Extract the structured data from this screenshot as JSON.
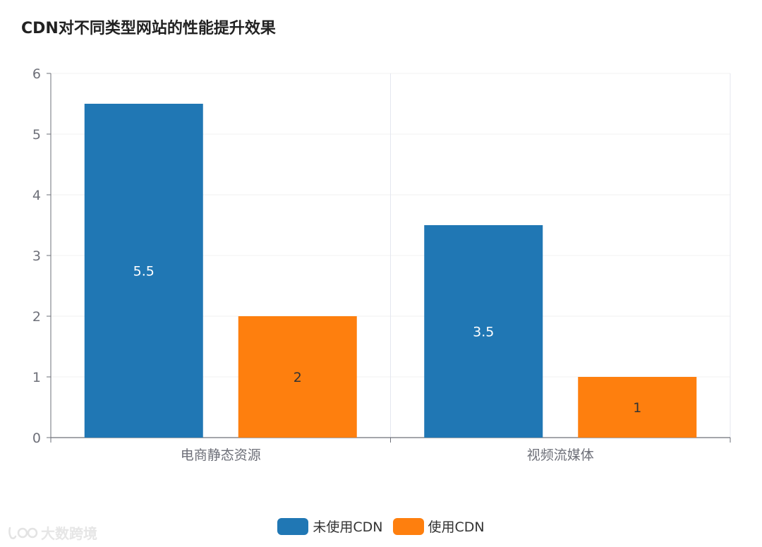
{
  "chart_data": {
    "type": "bar",
    "title": "CDN对不同类型网站的性能提升效果",
    "categories": [
      "电商静态资源",
      "视频流媒体"
    ],
    "series": [
      {
        "name": "未使用CDN",
        "values": [
          5.5,
          3.5
        ],
        "color": "#2077b4"
      },
      {
        "name": "使用CDN",
        "values": [
          2,
          1
        ],
        "color": "#fe7f0e"
      }
    ],
    "xlabel": "",
    "ylabel": "",
    "ylim": [
      0,
      6
    ],
    "yticks": [
      0,
      1,
      2,
      3,
      4,
      5,
      6
    ],
    "grid": true,
    "legend": "bottom-center"
  },
  "watermark": {
    "text": "大数跨境"
  }
}
